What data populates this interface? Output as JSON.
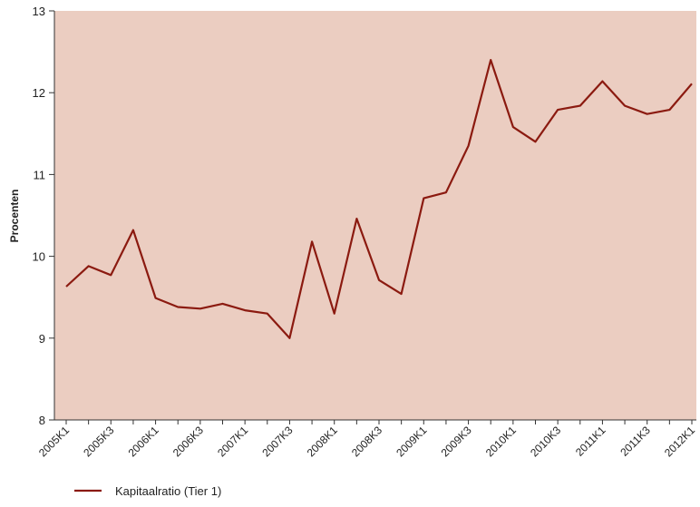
{
  "chart_data": {
    "type": "line",
    "ylabel": "Procenten",
    "categories": [
      "2005K1",
      null,
      "2005K3",
      null,
      "2006K1",
      null,
      "2006K3",
      null,
      "2007K1",
      null,
      "2007K3",
      null,
      "2008K1",
      null,
      "2008K3",
      null,
      "2009K1",
      null,
      "2009K3",
      null,
      "2010K1",
      null,
      "2010K3",
      null,
      "2011K1",
      null,
      "2011K3",
      null,
      "2012K1"
    ],
    "series": [
      {
        "name": "Kapitaalratio (Tier 1)",
        "color": "#8b1a10",
        "values": [
          9.63,
          9.88,
          9.77,
          10.32,
          9.49,
          9.38,
          9.36,
          9.42,
          9.34,
          9.3,
          9.0,
          10.18,
          9.3,
          10.46,
          9.71,
          9.54,
          10.71,
          10.78,
          11.35,
          12.4,
          11.58,
          11.4,
          11.79,
          11.84,
          12.14,
          11.84,
          11.74,
          11.79,
          12.11
        ]
      }
    ],
    "ylim": [
      8,
      13
    ],
    "yticks": [
      8,
      9,
      10,
      11,
      12,
      13
    ],
    "background": "#ebcdc1",
    "grid": false,
    "legend": "bottom-left"
  }
}
